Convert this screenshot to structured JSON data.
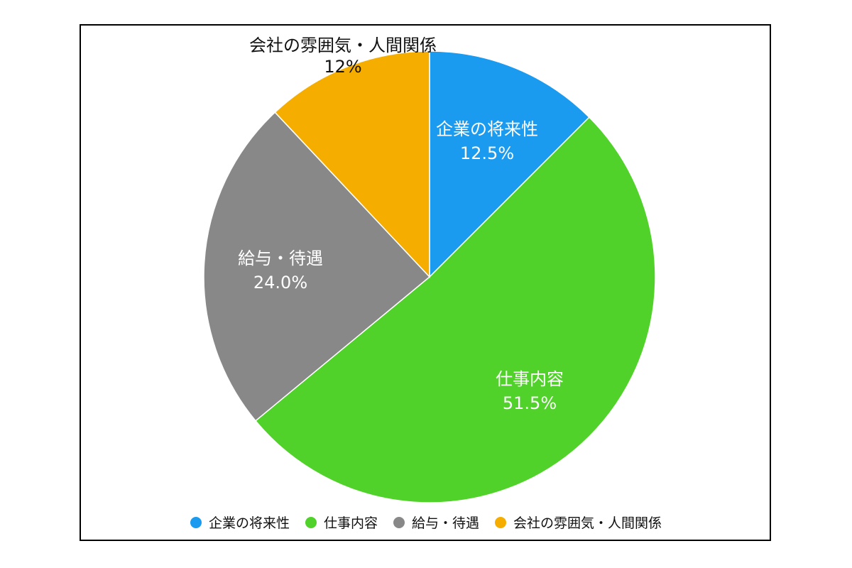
{
  "chart_data": {
    "type": "pie",
    "categories": [
      "企業の将来性",
      "仕事内容",
      "給与・待遇",
      "会社の雰囲気・人間関係"
    ],
    "values": [
      12.5,
      51.5,
      24.0,
      12
    ],
    "value_labels": [
      "12.5%",
      "51.5%",
      "24.0%",
      "12%"
    ],
    "colors": [
      "#1a9bf0",
      "#50d22a",
      "#888888",
      "#f5ad00"
    ],
    "label_colors": [
      "#ffffff",
      "#ffffff",
      "#ffffff",
      "#111111"
    ],
    "start": "top",
    "direction": "clockwise",
    "legend": "bottom",
    "title": ""
  }
}
